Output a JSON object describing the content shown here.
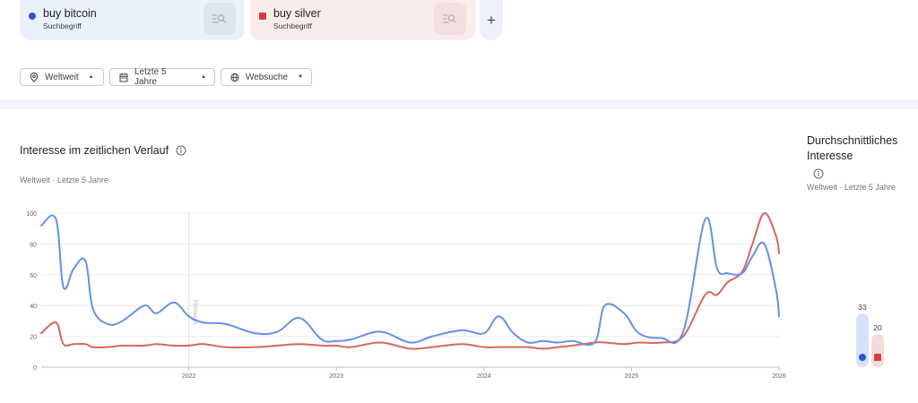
{
  "terms": [
    {
      "name": "buy bitcoin",
      "type": "Suchbegriff",
      "color": "#2a56d0",
      "line_color": "#6690e8",
      "marker": "circle",
      "action_icon": "search-list-icon"
    },
    {
      "name": "buy silver",
      "type": "Suchbegriff",
      "color": "#d0403a",
      "line_color": "#d8665e",
      "marker": "square",
      "action_icon": "search-list-icon"
    }
  ],
  "add_term": {
    "label": "+",
    "icon": "plus-icon"
  },
  "filters": [
    {
      "label": "Weltweit",
      "icon": "location-pin-icon",
      "caret": "▲"
    },
    {
      "label": "Letzte 5 Jahre",
      "icon": "calendar-icon",
      "caret": "▲"
    },
    {
      "label": "Websuche",
      "icon": "globe-icon",
      "caret": "▼"
    }
  ],
  "interest_over_time": {
    "title": "Interesse im zeitlichen Verlauf",
    "info_icon": "info-icon",
    "subtitle": "Weltweit · Letzte 5 Jahre",
    "annotation": "Hinweis"
  },
  "average_interest": {
    "title": "Durchschnittliches Interesse",
    "info_icon": "info-icon",
    "subtitle": "Weltweit · Letzte 5 Jahre",
    "values": [
      {
        "term": "buy bitcoin",
        "value": "33"
      },
      {
        "term": "buy silver",
        "value": "20"
      }
    ]
  },
  "chart_data": {
    "type": "line",
    "title": "Interesse im zeitlichen Verlauf",
    "subtitle": "Weltweit · Letzte 5 Jahre",
    "xlabel": "",
    "ylabel": "",
    "ylim": [
      0,
      100
    ],
    "yticks": [
      0,
      20,
      40,
      60,
      80,
      100
    ],
    "xticks": [
      "2022",
      "2023",
      "2024",
      "2025",
      "2026"
    ],
    "grid": true,
    "annotation": {
      "label": "Hinweis",
      "x": 2022.0
    },
    "x": [
      2021.0,
      2021.1,
      2021.15,
      2021.22,
      2021.3,
      2021.35,
      2021.45,
      2021.55,
      2021.7,
      2021.78,
      2021.9,
      2022.0,
      2022.1,
      2022.25,
      2022.45,
      2022.6,
      2022.75,
      2022.9,
      2023.0,
      2023.1,
      2023.3,
      2023.5,
      2023.65,
      2023.85,
      2024.0,
      2024.1,
      2024.2,
      2024.3,
      2024.4,
      2024.5,
      2024.6,
      2024.75,
      2024.82,
      2024.95,
      2025.05,
      2025.2,
      2025.35,
      2025.5,
      2025.58,
      2025.65,
      2025.75,
      2025.82,
      2025.9,
      2025.98,
      2026.0
    ],
    "series": [
      {
        "name": "buy bitcoin",
        "values": [
          92,
          96,
          52,
          64,
          69,
          38,
          28,
          30,
          40,
          35,
          42,
          33,
          29,
          28,
          22,
          23,
          32,
          18,
          17,
          18,
          23,
          16,
          20,
          24,
          22,
          33,
          22,
          16,
          17,
          16,
          17,
          16,
          40,
          35,
          22,
          19,
          23,
          96,
          64,
          61,
          61,
          72,
          80,
          50,
          33
        ]
      },
      {
        "name": "buy silver",
        "values": [
          22,
          29,
          15,
          15,
          15,
          13,
          13,
          14,
          14,
          15,
          14,
          14,
          15,
          13,
          13,
          14,
          15,
          14,
          14,
          13,
          16,
          12,
          13,
          15,
          13,
          13,
          13,
          13,
          12,
          13,
          14,
          16,
          16,
          15,
          16,
          16,
          20,
          47,
          47,
          55,
          62,
          80,
          100,
          85,
          74
        ]
      }
    ]
  }
}
